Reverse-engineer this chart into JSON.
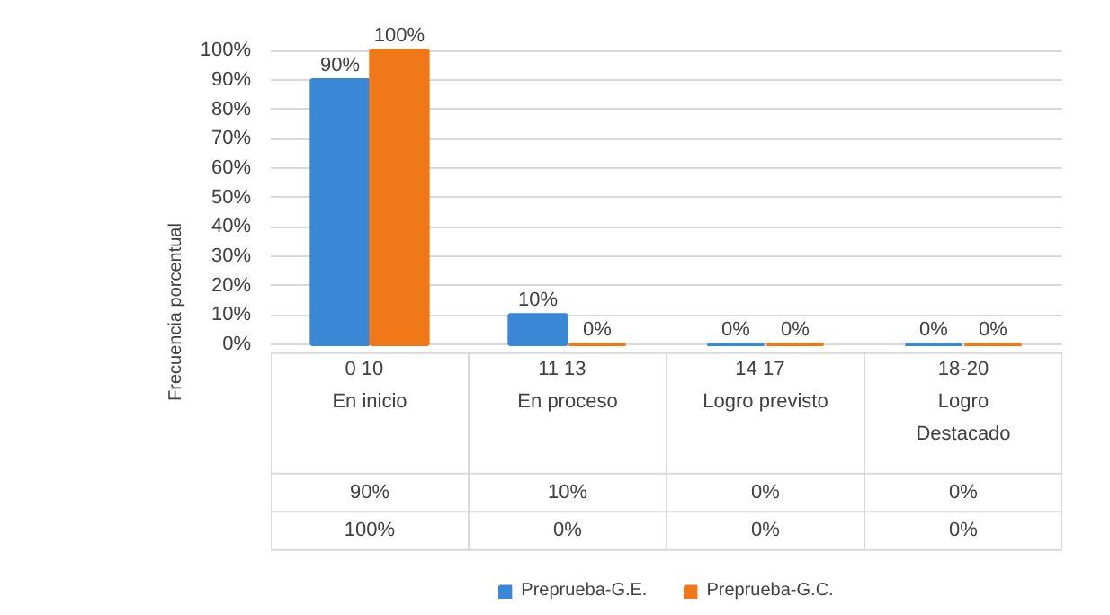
{
  "chart_data": {
    "type": "bar",
    "ylabel": "Frecuencia porcentual",
    "categories": [
      "0   10\nEn inicio",
      "11   13\nEn proceso",
      "14   17\nLogro previsto",
      "18-20\nLogro\nDestacado"
    ],
    "series": [
      {
        "name": "Preprueba-G.E.",
        "color": "#3a87d6",
        "values": [
          90,
          10,
          0,
          0
        ],
        "value_labels": [
          "90%",
          "10%",
          "0%",
          "0%"
        ]
      },
      {
        "name": "Preprueba-G.C.",
        "color": "#f07818",
        "values": [
          100,
          0,
          0,
          0
        ],
        "value_labels": [
          "100%",
          "0%",
          "0%",
          "0%"
        ]
      }
    ],
    "ylim": [
      0,
      100
    ],
    "yticks": [
      {
        "value": 0,
        "label": "0%"
      },
      {
        "value": 10,
        "label": "10%"
      },
      {
        "value": 20,
        "label": "20%"
      },
      {
        "value": 30,
        "label": "30%"
      },
      {
        "value": 40,
        "label": "40%"
      },
      {
        "value": 50,
        "label": "50%"
      },
      {
        "value": 60,
        "label": "60%"
      },
      {
        "value": 70,
        "label": "70%"
      },
      {
        "value": 80,
        "label": "80%"
      },
      {
        "value": 90,
        "label": "90%"
      },
      {
        "value": 100,
        "label": "100%"
      }
    ],
    "grid": "y",
    "legend": "bottom"
  }
}
